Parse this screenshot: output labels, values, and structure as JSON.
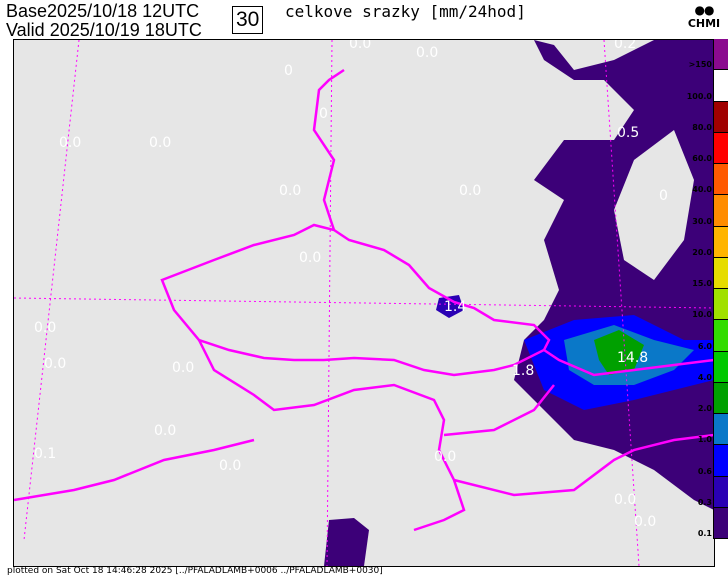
{
  "header": {
    "base_label": "Base",
    "base_time": "2025/10/18 12UTC",
    "valid_label": "Valid",
    "valid_time": "2025/10/19 18UTC",
    "forecast_hour": "30",
    "title": "celkove srazky [mm/24hod]",
    "logo_text": "CHMI"
  },
  "legend": {
    "labels": [
      ">150",
      "100.0",
      "80.0",
      "60.0",
      "40.0",
      "30.0",
      "20.0",
      "15.0",
      "10.0",
      "6.0",
      "4.0",
      "2.0",
      "1.0",
      "0.6",
      "0.3",
      "0.1"
    ],
    "colors": [
      "#8a0a8f",
      "#ffffff",
      "#a00000",
      "#ff0000",
      "#ff5a00",
      "#ff8c00",
      "#ffb400",
      "#e6dc00",
      "#a0e000",
      "#32dc00",
      "#00c800",
      "#00a000",
      "#0a78c8",
      "#0000ff",
      "#2a00b4",
      "#3c0078"
    ]
  },
  "map": {
    "background": "#e6e6e6",
    "border_color": "#ff00ff",
    "value_labels": [
      {
        "text": "0.0"
      },
      {
        "text": "0.0"
      },
      {
        "text": "0.2"
      },
      {
        "text": "0"
      },
      {
        "text": "0"
      },
      {
        "text": "0.0"
      },
      {
        "text": "0.0"
      },
      {
        "text": "0.0"
      },
      {
        "text": "0.0"
      },
      {
        "text": "0.5"
      },
      {
        "text": "0.0"
      },
      {
        "text": "1.4"
      },
      {
        "text": "0.0"
      },
      {
        "text": "0.0"
      },
      {
        "text": "0.0"
      },
      {
        "text": "1.8"
      },
      {
        "text": "14.8"
      },
      {
        "text": "0.0"
      },
      {
        "text": "0.1"
      },
      {
        "text": "0.0"
      },
      {
        "text": "0.0"
      },
      {
        "text": "0.0"
      },
      {
        "text": "0.0"
      },
      {
        "text": "0"
      }
    ]
  },
  "footer": {
    "text": "plotted on Sat Oct 18 14:46:28 2025 [../PFALADLAMB+0006 ../PFALADLAMB+0030]"
  }
}
